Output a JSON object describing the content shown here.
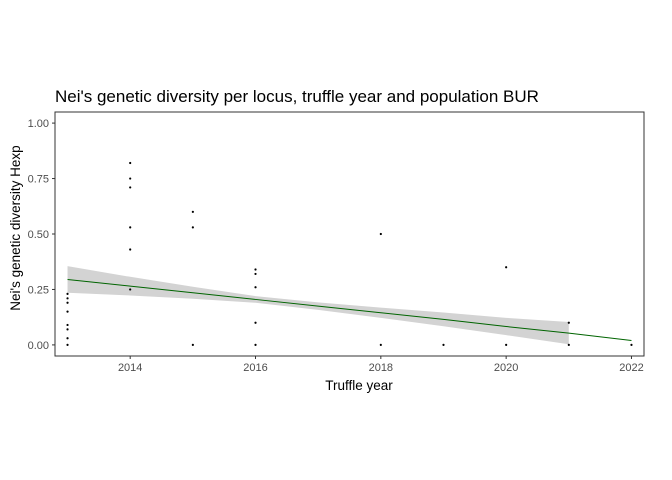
{
  "chart_data": {
    "type": "scatter",
    "title": "Nei's genetic diversity per locus, truffle year and population BUR",
    "xlabel": "Truffle year",
    "ylabel": "Nei's genetic diversity Hexp",
    "xlim": [
      2012.8,
      2022.2
    ],
    "ylim": [
      -0.05,
      1.05
    ],
    "x_ticks": [
      2014,
      2016,
      2018,
      2020,
      2022
    ],
    "y_ticks": [
      0.0,
      0.25,
      0.5,
      0.75,
      1.0
    ],
    "y_tick_labels": [
      "0.00",
      "0.25",
      "0.50",
      "0.75",
      "1.00"
    ],
    "grid": false,
    "legend": "none",
    "colors": {
      "point": "#000000",
      "trend_line": "#006400",
      "confidence_band": "#d3d3d3",
      "panel_border": "#333333"
    },
    "points": [
      {
        "x": 2013,
        "y": 0.0
      },
      {
        "x": 2013,
        "y": 0.03
      },
      {
        "x": 2013,
        "y": 0.07
      },
      {
        "x": 2013,
        "y": 0.09
      },
      {
        "x": 2013,
        "y": 0.15
      },
      {
        "x": 2013,
        "y": 0.19
      },
      {
        "x": 2013,
        "y": 0.21
      },
      {
        "x": 2013,
        "y": 0.23
      },
      {
        "x": 2014,
        "y": 0.25
      },
      {
        "x": 2014,
        "y": 0.43
      },
      {
        "x": 2014,
        "y": 0.53
      },
      {
        "x": 2014,
        "y": 0.71
      },
      {
        "x": 2014,
        "y": 0.75
      },
      {
        "x": 2014,
        "y": 0.82
      },
      {
        "x": 2015,
        "y": 0.0
      },
      {
        "x": 2015,
        "y": 0.53
      },
      {
        "x": 2015,
        "y": 0.6
      },
      {
        "x": 2016,
        "y": 0.0
      },
      {
        "x": 2016,
        "y": 0.1
      },
      {
        "x": 2016,
        "y": 0.26
      },
      {
        "x": 2016,
        "y": 0.32
      },
      {
        "x": 2016,
        "y": 0.34
      },
      {
        "x": 2018,
        "y": 0.0
      },
      {
        "x": 2018,
        "y": 0.5
      },
      {
        "x": 2019,
        "y": 0.0
      },
      {
        "x": 2020,
        "y": 0.0
      },
      {
        "x": 2020,
        "y": 0.35
      },
      {
        "x": 2021,
        "y": 0.0
      },
      {
        "x": 2021,
        "y": 0.1
      },
      {
        "x": 2022,
        "y": 0.0
      }
    ],
    "trend": {
      "x": [
        2013,
        2014,
        2015,
        2016,
        2017,
        2018,
        2019,
        2020,
        2021,
        2022
      ],
      "y": [
        0.295,
        0.265,
        0.235,
        0.205,
        0.175,
        0.145,
        0.115,
        0.083,
        0.053,
        0.02
      ],
      "ci_upper": [
        0.355,
        0.307,
        0.262,
        0.22,
        0.192,
        0.168,
        0.146,
        0.122,
        0.103
      ],
      "ci_lower": [
        0.235,
        0.223,
        0.208,
        0.19,
        0.158,
        0.122,
        0.084,
        0.044,
        0.003
      ],
      "ci_x": [
        2013,
        2014,
        2015,
        2016,
        2017,
        2018,
        2019,
        2020,
        2021
      ]
    }
  }
}
